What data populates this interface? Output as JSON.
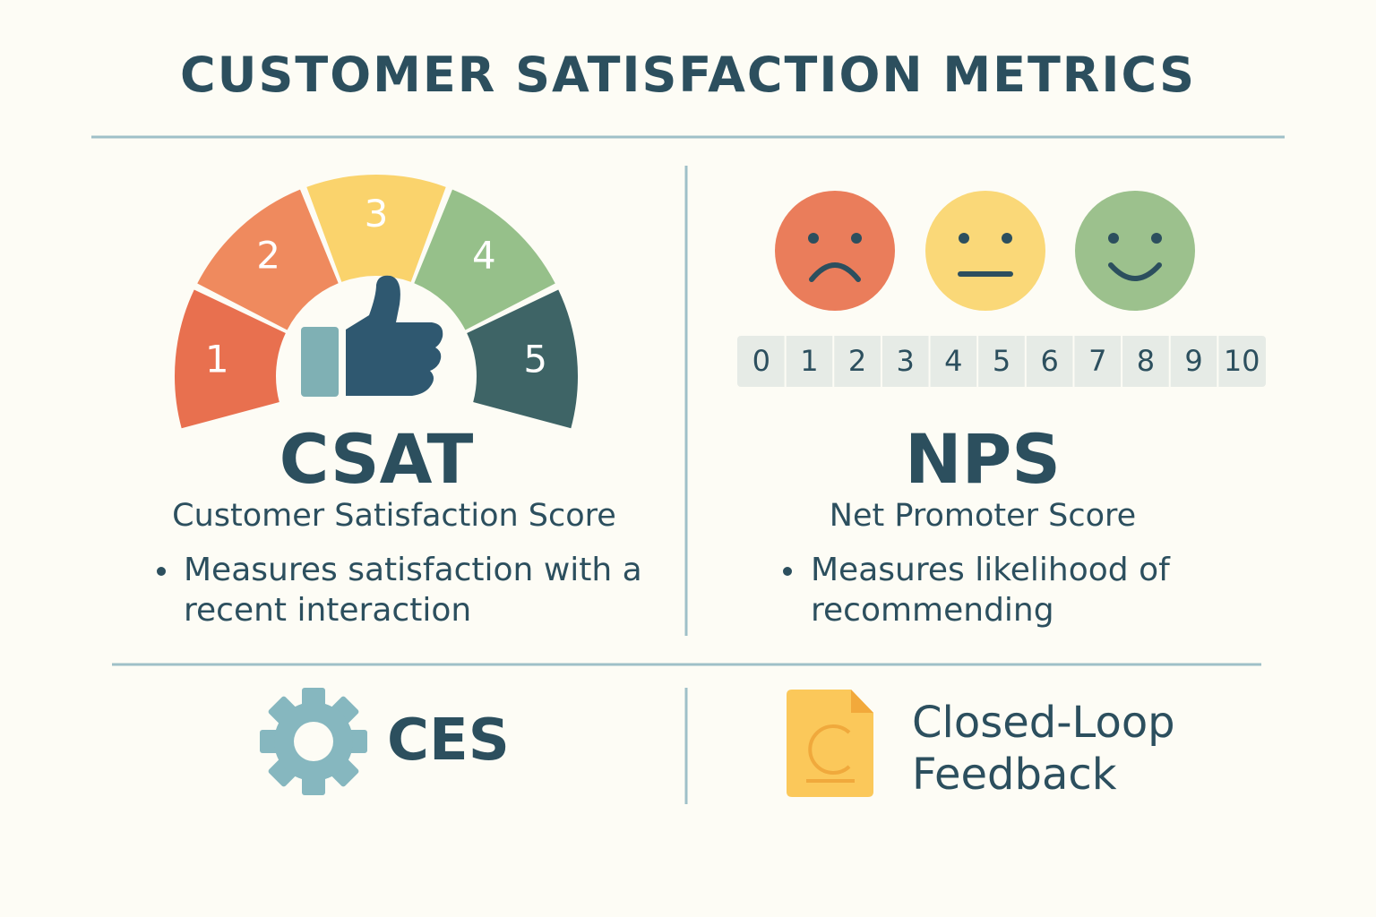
{
  "header": {
    "title": "CUSTOMER SATISFACTION METRICS"
  },
  "csat": {
    "gauge_labels": [
      1,
      2,
      3,
      4,
      5
    ],
    "acronym": "CSAT",
    "name": "Customer Satisfaction Score",
    "bullet": "Measures satisfaction with a recent interaction"
  },
  "nps": {
    "scale": [
      0,
      1,
      2,
      3,
      4,
      5,
      6,
      7,
      8,
      9,
      10
    ],
    "acronym": "NPS",
    "name": "Net Promoter Score",
    "bullet": "Measures likelihood of recommending"
  },
  "ces": {
    "label": "CES"
  },
  "closed_loop": {
    "label": "Closed-Loop Feedback"
  }
}
